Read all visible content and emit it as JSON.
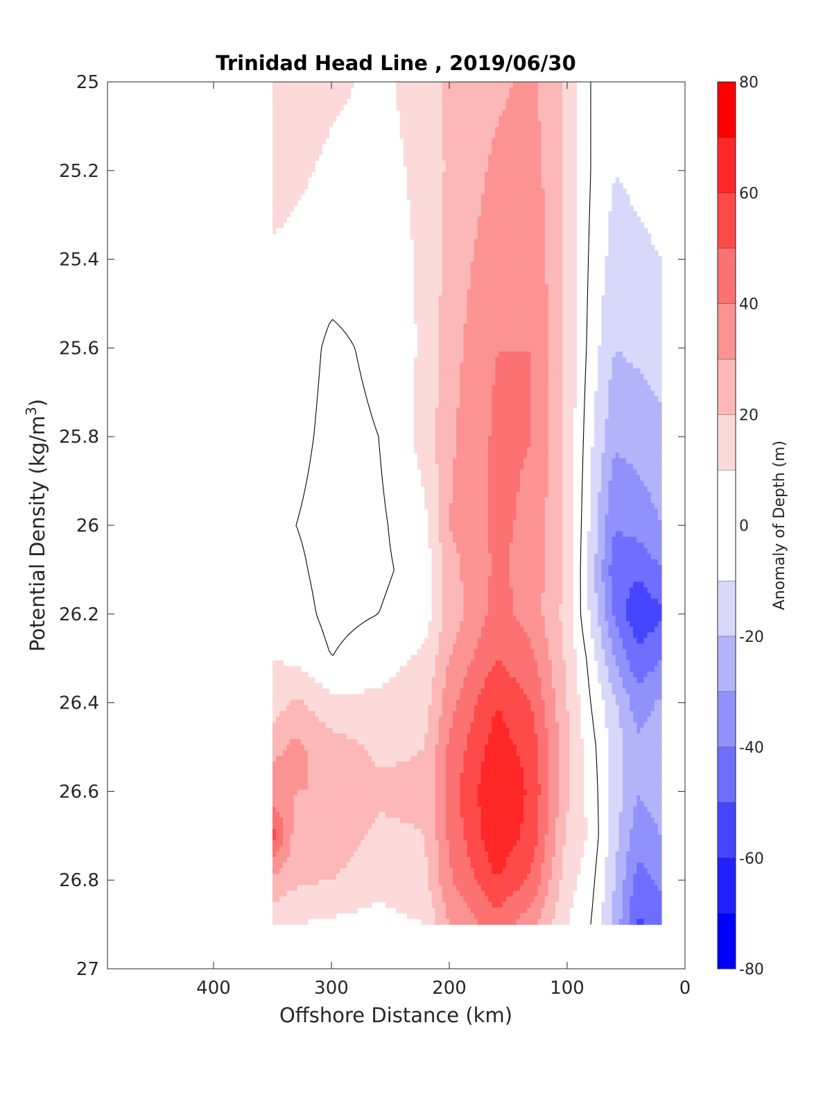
{
  "chart_data": {
    "type": "heatmap",
    "subtype": "filled-contour",
    "title": "Trinidad Head Line , 2019/06/30",
    "xlabel": "Offshore Distance (km)",
    "ylabel": "Potential Density (kg/m",
    "ylabel_superscript": "3",
    "ylabel_suffix": ")",
    "colorbar_label": "Anomaly of Depth (m)",
    "x_axis": {
      "range": [
        490,
        0
      ],
      "reversed": true,
      "ticks": [
        400,
        300,
        200,
        100,
        0
      ],
      "tick_labels": [
        "400",
        "300",
        "200",
        "100",
        "0"
      ]
    },
    "y_axis": {
      "range": [
        25,
        27
      ],
      "reversed": true,
      "ticks": [
        25,
        25.2,
        25.4,
        25.6,
        25.8,
        26,
        26.2,
        26.4,
        26.6,
        26.8,
        27
      ],
      "tick_labels": [
        "25",
        "25.2",
        "25.4",
        "25.6",
        "25.8",
        "26",
        "26.2",
        "26.4",
        "26.6",
        "26.8",
        "27"
      ]
    },
    "colorbar": {
      "range": [
        -80,
        80
      ],
      "levels": [
        -80,
        -70,
        -60,
        -50,
        -40,
        -30,
        -20,
        -10,
        10,
        20,
        30,
        40,
        50,
        60,
        70,
        80
      ],
      "colors": [
        "#0000ff",
        "#2020ff",
        "#4545ff",
        "#6f6fff",
        "#9191fc",
        "#b3b3fa",
        "#d8d8fa",
        "#ffffff",
        "#fcdada",
        "#fcb7b7",
        "#fc9393",
        "#fc7272",
        "#ff4a4a",
        "#ff2727",
        "#ff0000"
      ],
      "ticks": [
        -80,
        -60,
        -40,
        -20,
        0,
        20,
        40,
        60,
        80
      ],
      "tick_labels": [
        "-80",
        "-60",
        "-40",
        "-20",
        "0",
        "20",
        "40",
        "60",
        "80"
      ]
    },
    "grid": false,
    "zero_contour_color": "#000000",
    "data_extent": {
      "x": [
        350,
        20
      ],
      "y": [
        25,
        26.9
      ]
    },
    "columns": [
      {
        "x": 350,
        "values": [
          18,
          15,
          8,
          6,
          4,
          2,
          4,
          6,
          10,
          14,
          28,
          35,
          55,
          28,
          12
        ]
      },
      {
        "x": 330,
        "values": [
          15,
          12,
          7,
          5,
          3,
          0,
          2,
          4,
          8,
          22,
          32,
          30,
          25,
          22,
          10
        ]
      },
      {
        "x": 300,
        "values": [
          12,
          8,
          4,
          -2,
          -3,
          -4,
          -4,
          -3,
          0,
          12,
          25,
          30,
          26,
          20,
          8
        ]
      },
      {
        "x": 260,
        "values": [
          8,
          6,
          4,
          2,
          0,
          -2,
          -2,
          0,
          6,
          12,
          18,
          22,
          18,
          14,
          6
        ]
      },
      {
        "x": 220,
        "values": [
          14,
          13,
          12,
          12,
          14,
          8,
          4,
          6,
          12,
          16,
          20,
          22,
          20,
          18,
          10
        ]
      },
      {
        "x": 200,
        "values": [
          22,
          22,
          24,
          26,
          28,
          30,
          26,
          24,
          30,
          36,
          42,
          45,
          42,
          38,
          30
        ]
      },
      {
        "x": 160,
        "values": [
          28,
          32,
          36,
          40,
          42,
          42,
          42,
          44,
          50,
          60,
          65,
          70,
          68,
          60,
          45
        ]
      },
      {
        "x": 130,
        "values": [
          32,
          35,
          38,
          40,
          40,
          38,
          36,
          36,
          42,
          50,
          56,
          58,
          56,
          48,
          34
        ]
      },
      {
        "x": 100,
        "values": [
          18,
          18,
          18,
          18,
          18,
          18,
          18,
          16,
          18,
          20,
          22,
          22,
          18,
          14,
          10
        ]
      },
      {
        "x": 80,
        "values": [
          0,
          0,
          -2,
          -4,
          -8,
          -12,
          -14,
          -12,
          -4,
          0,
          4,
          6,
          8,
          4,
          0
        ]
      },
      {
        "x": 60,
        "values": [
          -6,
          -10,
          -14,
          -20,
          -28,
          -40,
          -46,
          -42,
          -30,
          -18,
          -14,
          -14,
          -16,
          -20,
          -22
        ]
      },
      {
        "x": 40,
        "values": [
          -4,
          -8,
          -12,
          -18,
          -26,
          -36,
          -48,
          -58,
          -48,
          -36,
          -28,
          -30,
          -36,
          -44,
          -52
        ]
      },
      {
        "x": 20,
        "values": [
          -2,
          -6,
          -10,
          -16,
          -22,
          -30,
          -40,
          -52,
          -40,
          -28,
          -20,
          -24,
          -30,
          -38,
          -46
        ]
      }
    ],
    "row_y": [
      25.0,
      25.2,
      25.4,
      25.6,
      25.8,
      26.0,
      26.1,
      26.2,
      26.3,
      26.4,
      26.5,
      26.6,
      26.7,
      26.8,
      26.9
    ]
  }
}
